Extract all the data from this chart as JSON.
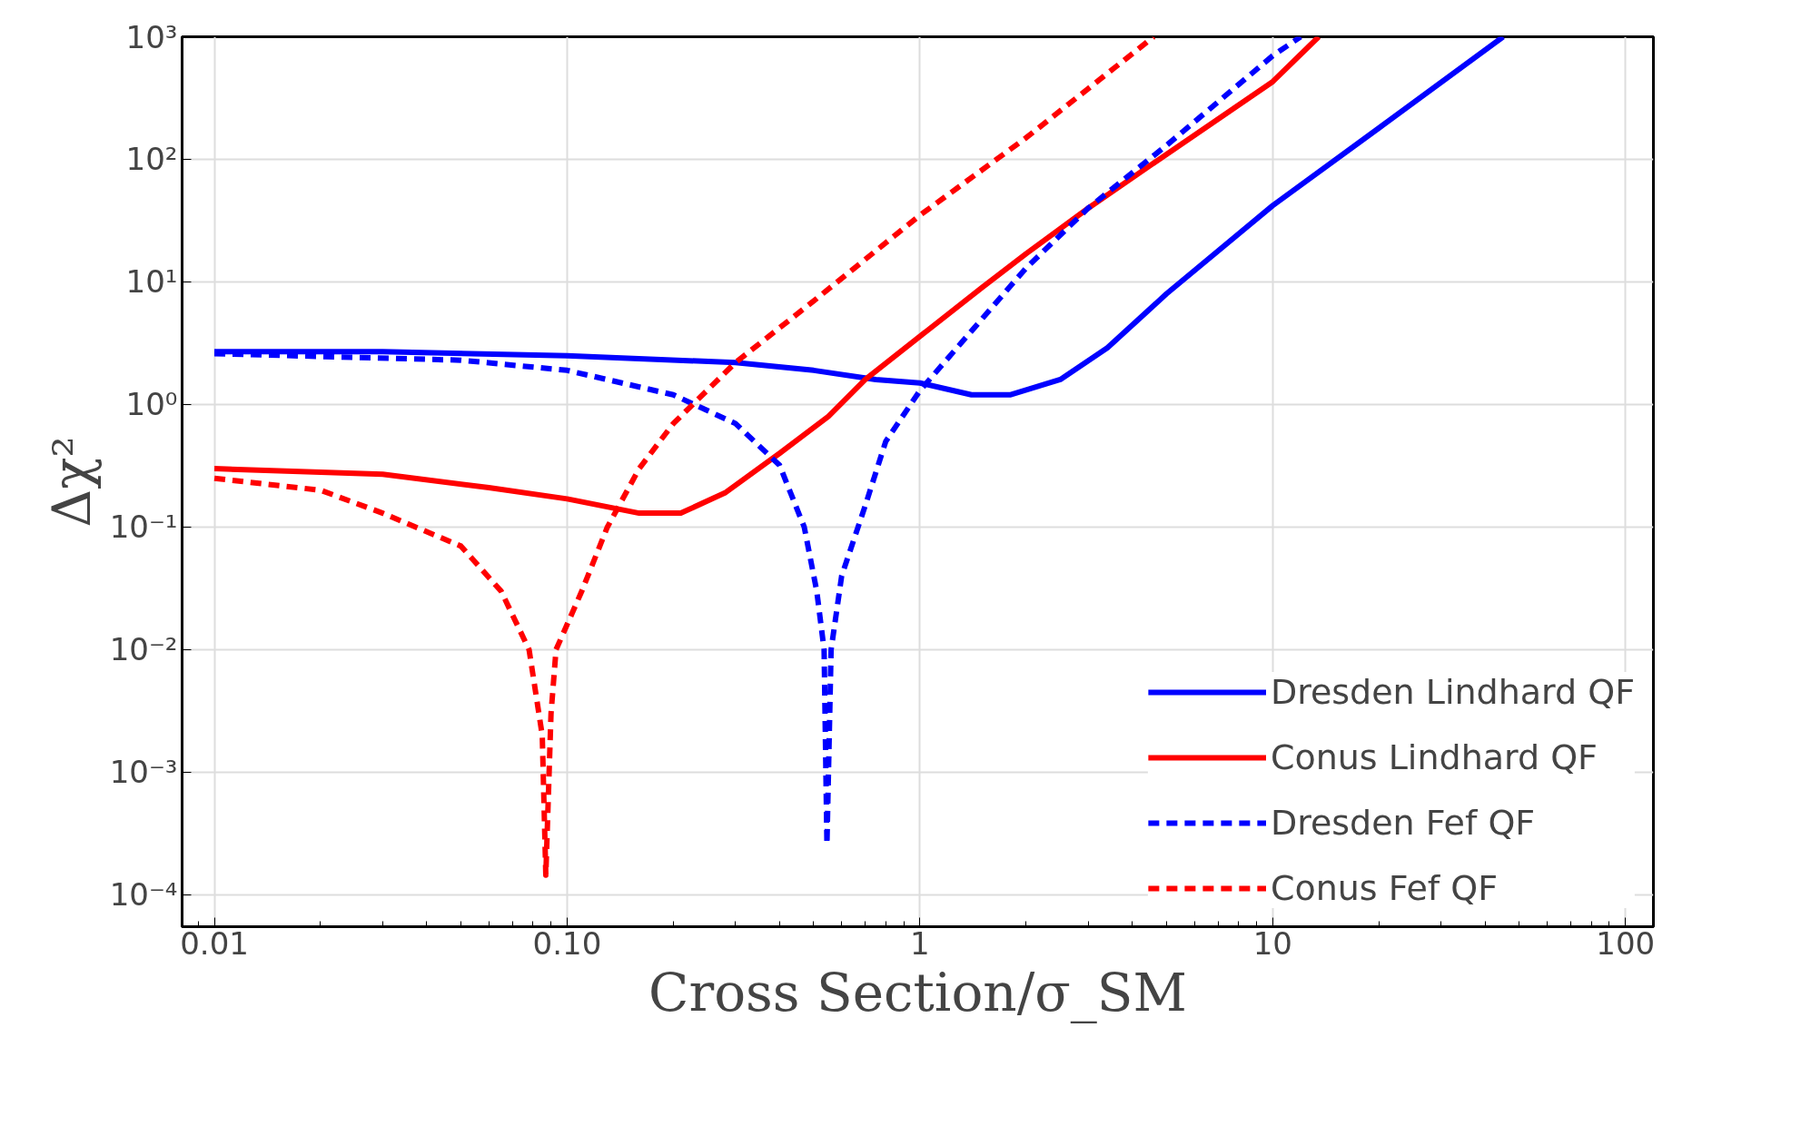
{
  "chart_data": {
    "type": "line",
    "xlabel": "Cross Section/σ_SM",
    "ylabel": "Δχ²",
    "log": "xy",
    "grid": true,
    "legend": "bottom right",
    "xlim": [
      0.0081,
      120
    ],
    "ylim": [
      5.5e-05,
      1000
    ],
    "xticks": [
      0.01,
      {
        "value": 0.1,
        "label": "0.10"
      },
      1,
      10,
      100
    ],
    "yticks": [
      {
        "value": 0.0001,
        "label": "10⁻⁴"
      },
      {
        "value": 0.001,
        "label": "10⁻³"
      },
      {
        "value": 0.01,
        "label": "10⁻²"
      },
      {
        "value": 0.1,
        "label": "10⁻¹"
      },
      {
        "value": 1,
        "label": "10⁰"
      },
      {
        "value": 10,
        "label": "10¹"
      },
      {
        "value": 100,
        "label": "10²"
      },
      {
        "value": 1000,
        "label": "10³"
      }
    ],
    "series": [
      {
        "name": "Dresden Lindhard QF",
        "color": "#0000ff",
        "line_style": "solid",
        "x": [
          0.01,
          0.03,
          0.1,
          0.3,
          0.5,
          0.75,
          1.0,
          1.4,
          1.8,
          2.5,
          3.4,
          5,
          10,
          20,
          45
        ],
        "values": [
          2.7,
          2.7,
          2.5,
          2.2,
          1.9,
          1.6,
          1.5,
          1.2,
          1.2,
          1.6,
          2.9,
          8,
          42,
          180,
          1000
        ]
      },
      {
        "name": "Conus Lindhard QF",
        "color": "#ff0000",
        "line_style": "solid",
        "x": [
          0.01,
          0.03,
          0.06,
          0.1,
          0.16,
          0.21,
          0.28,
          0.4,
          0.55,
          0.7,
          1,
          1.5,
          2,
          3,
          5,
          10,
          13.5
        ],
        "values": [
          0.3,
          0.27,
          0.21,
          0.17,
          0.13,
          0.13,
          0.19,
          0.4,
          0.8,
          1.6,
          3.6,
          9,
          17,
          40,
          110,
          430,
          1000
        ]
      },
      {
        "name": "Dresden Fef QF",
        "color": "#0000ff",
        "line_style": "dashed",
        "x": [
          0.01,
          0.05,
          0.1,
          0.2,
          0.3,
          0.4,
          0.47,
          0.51,
          0.535,
          0.545,
          0.56,
          0.6,
          0.7,
          0.8,
          1,
          1.5,
          2,
          3,
          5,
          10,
          12
        ],
        "values": [
          2.6,
          2.3,
          1.9,
          1.2,
          0.7,
          0.32,
          0.1,
          0.03,
          0.01,
          0.00026,
          0.01,
          0.04,
          0.15,
          0.5,
          1.3,
          5,
          13,
          40,
          130,
          700,
          1000
        ]
      },
      {
        "name": "Conus Fef QF",
        "color": "#ff0000",
        "line_style": "dashed",
        "x": [
          0.01,
          0.02,
          0.03,
          0.05,
          0.065,
          0.078,
          0.085,
          0.087,
          0.09,
          0.093,
          0.11,
          0.13,
          0.16,
          0.2,
          0.3,
          0.5,
          1,
          2,
          4.6
        ],
        "values": [
          0.25,
          0.2,
          0.13,
          0.07,
          0.03,
          0.01,
          0.002,
          0.000145,
          0.003,
          0.01,
          0.03,
          0.1,
          0.3,
          0.7,
          2.2,
          7,
          35,
          150,
          1000
        ]
      }
    ]
  }
}
